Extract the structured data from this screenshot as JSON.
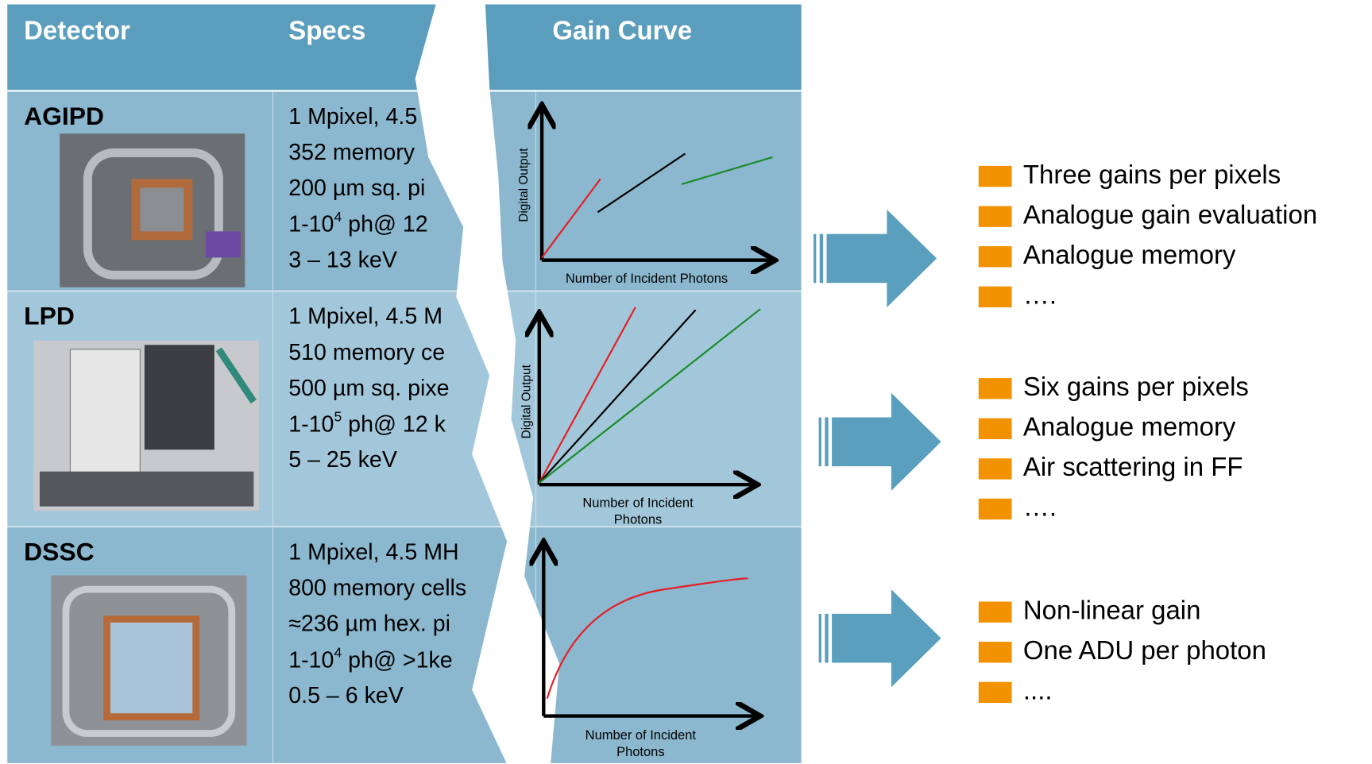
{
  "header": {
    "columns": [
      "Detector",
      "Specs",
      "Gain Curve"
    ]
  },
  "rows": [
    {
      "detector": "AGIPD",
      "specs": [
        "1 Mpixel, 4.5",
        "352 memory",
        "200 µm sq. pi",
        {
          "base": "1-10",
          "sup": "4",
          "rest": " ph@ 12"
        },
        "3 – 13 keV"
      ],
      "gain_curve": {
        "y_label": "Digital Output",
        "x_label": [
          "Number of Incident Photons"
        ]
      }
    },
    {
      "detector": "LPD",
      "specs": [
        "1 Mpixel, 4.5 M",
        "510 memory ce",
        "500 µm sq. pixe",
        {
          "base": "1-10",
          "sup": "5",
          "rest": " ph@ 12 k"
        },
        "5 – 25 keV"
      ],
      "gain_curve": {
        "y_label": "Digital Output",
        "x_label": [
          "Number of Incident",
          "Photons"
        ]
      }
    },
    {
      "detector": "DSSC",
      "specs": [
        "1 Mpixel, 4.5 MH",
        "800 memory cells",
        "≈236 µm hex. pi",
        {
          "base": "1-10",
          "sup": "4",
          "rest": " ph@ >1ke"
        },
        "0.5 – 6 keV"
      ],
      "gain_curve": {
        "x_label": [
          "Number of Incident",
          "Photons"
        ]
      }
    }
  ],
  "features": [
    [
      "Three gains per pixels",
      "Analogue gain evaluation",
      "Analogue memory",
      "…."
    ],
    [
      "Six gains per pixels",
      "Analogue memory",
      "Air scattering in FF",
      "…."
    ],
    [
      "Non-linear gain",
      "One ADU per photon",
      "...."
    ]
  ]
}
